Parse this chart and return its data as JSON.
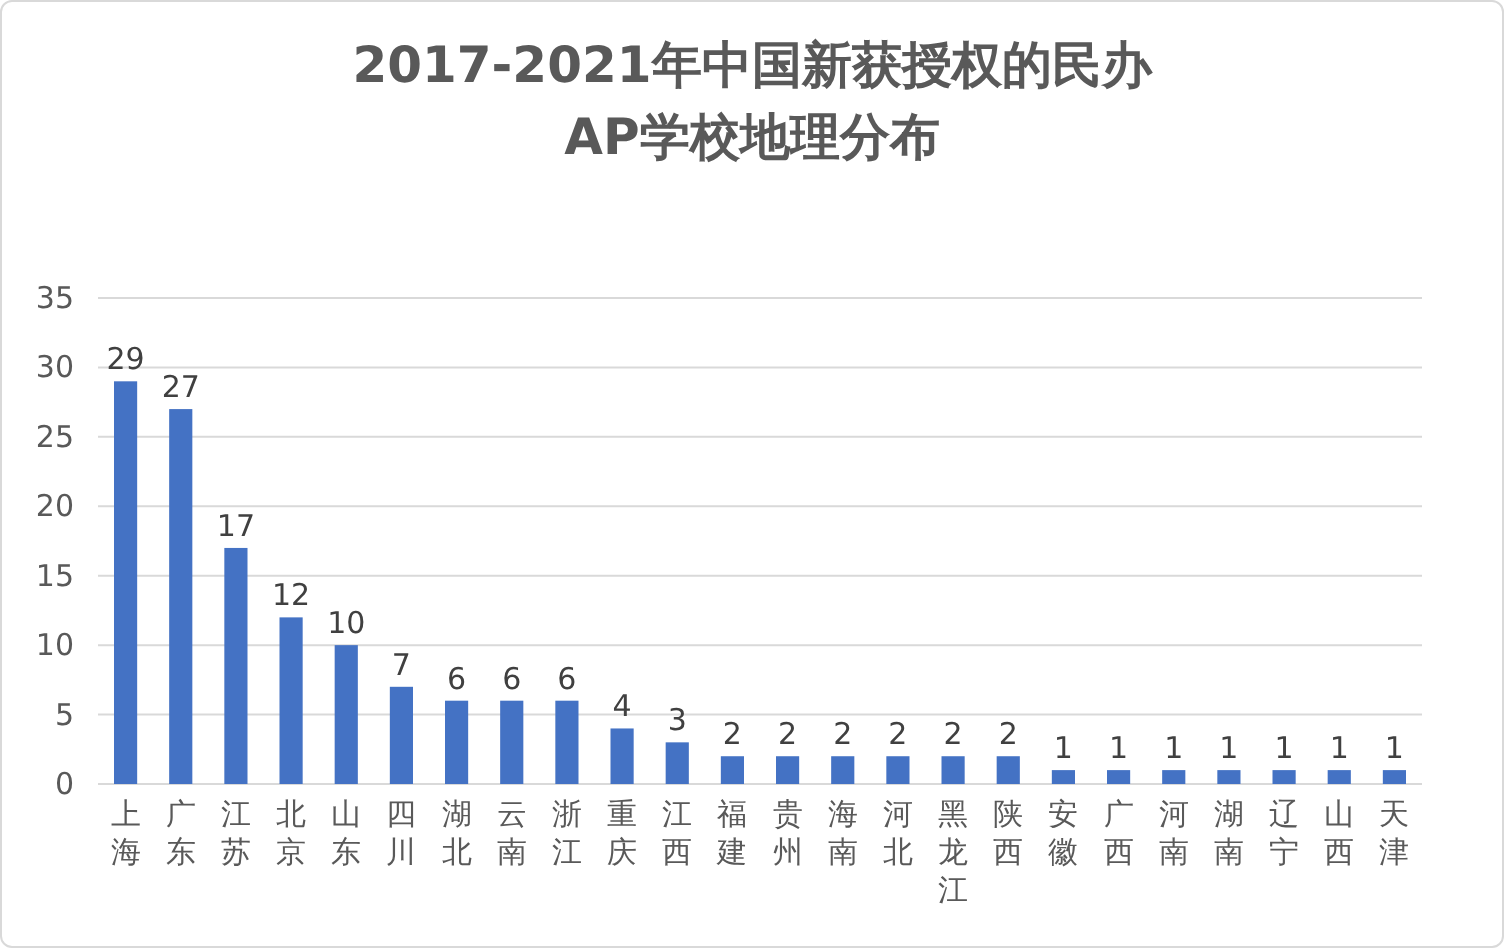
{
  "chart_data": {
    "type": "bar",
    "title": "2017-2021年中国新获授权的民办AP学校地理分布",
    "categories": [
      "上海",
      "广东",
      "江苏",
      "北京",
      "山东",
      "四川",
      "湖北",
      "云南",
      "浙江",
      "重庆",
      "江西",
      "福建",
      "贵州",
      "海南",
      "河北",
      "黑龙江",
      "陕西",
      "安徽",
      "广西",
      "河南",
      "湖南",
      "辽宁",
      "山西",
      "天津"
    ],
    "values": [
      29,
      27,
      17,
      12,
      10,
      7,
      6,
      6,
      6,
      4,
      3,
      2,
      2,
      2,
      2,
      2,
      2,
      1,
      1,
      1,
      1,
      1,
      1,
      1
    ],
    "color": "#4472c4",
    "ylim": [
      0,
      35
    ],
    "yticks": [
      0,
      5,
      10,
      15,
      20,
      25,
      30,
      35
    ],
    "grid": "y",
    "data_labels": true
  }
}
